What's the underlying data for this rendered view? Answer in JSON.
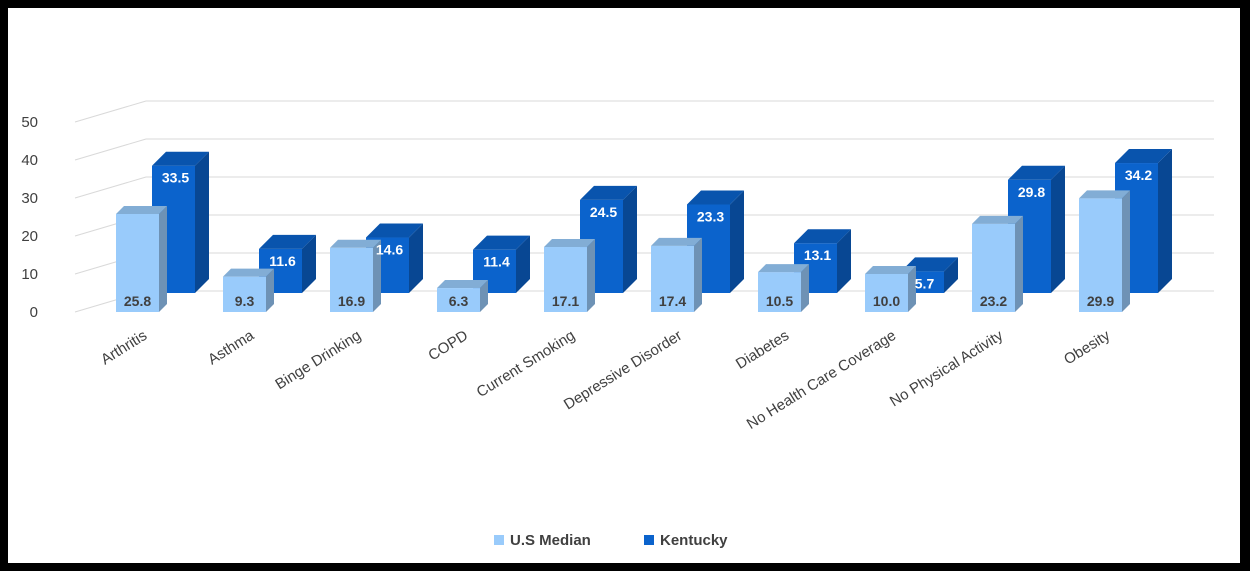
{
  "chart_data": {
    "type": "bar",
    "style": "3d-clustered-column",
    "categories": [
      "Arthritis",
      "Asthma",
      "Binge Drinking",
      "COPD",
      "Current Smoking",
      "Depressive Disorder",
      "Diabetes",
      "No Health Care Coverage",
      "No Physical Activity",
      "Obesity"
    ],
    "series": [
      {
        "name": "U.S Median",
        "color": "#99cbfb",
        "values": [
          25.8,
          9.3,
          16.9,
          6.3,
          17.1,
          17.4,
          10.5,
          10.0,
          23.2,
          29.9
        ]
      },
      {
        "name": "Kentucky",
        "color": "#0b63cc",
        "values": [
          33.5,
          11.6,
          14.6,
          11.4,
          24.5,
          23.3,
          13.1,
          5.7,
          29.8,
          34.2
        ]
      }
    ],
    "y_ticks": [
      "0",
      "10",
      "20",
      "30",
      "40",
      "50"
    ],
    "ylim": [
      0,
      50
    ],
    "grid": true,
    "legend_position": "bottom"
  }
}
